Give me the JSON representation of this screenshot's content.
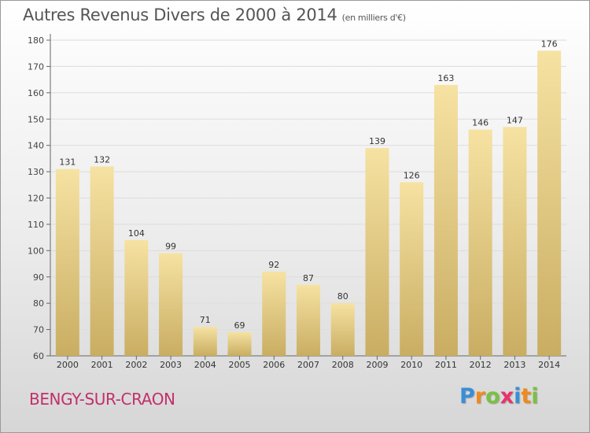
{
  "title": "Autres Revenus Divers de 2000 à 2014",
  "subtitle": "(en milliers d'€)",
  "commune": "BENGY-SUR-CRAON",
  "logo": [
    "P",
    "r",
    "o",
    "x",
    "i",
    "t",
    "i"
  ],
  "logo_colors": [
    "#3a8ed8",
    "#f08a1c",
    "#7ac143",
    "#e8336b",
    "#3a8ed8",
    "#f08a1c",
    "#7ac143"
  ],
  "colors": {
    "bar_light": "#f6e2a2",
    "bar_dark": "#c9ad62",
    "title": "#555555",
    "commune": "#c2306b"
  },
  "chart_data": {
    "type": "bar",
    "categories": [
      "2000",
      "2001",
      "2002",
      "2003",
      "2004",
      "2005",
      "2006",
      "2007",
      "2008",
      "2009",
      "2010",
      "2011",
      "2012",
      "2013",
      "2014"
    ],
    "values": [
      131,
      132,
      104,
      99,
      71,
      69,
      92,
      87,
      80,
      139,
      126,
      163,
      146,
      147,
      176
    ],
    "ylim": [
      60,
      180
    ],
    "yticks": [
      60,
      70,
      80,
      90,
      100,
      110,
      120,
      130,
      140,
      150,
      160,
      170,
      180
    ],
    "grid": true,
    "legend": false
  }
}
